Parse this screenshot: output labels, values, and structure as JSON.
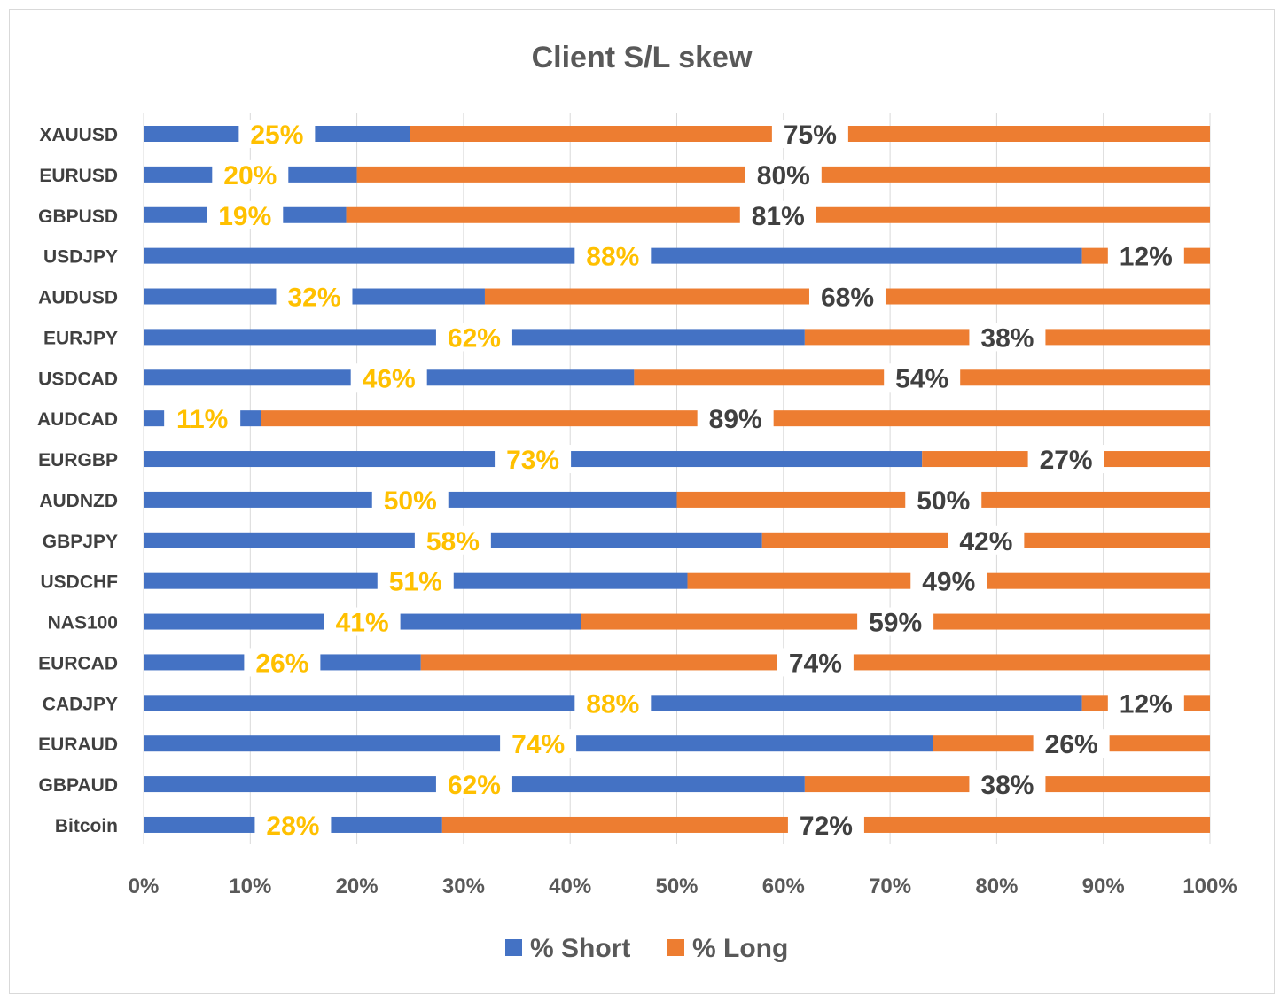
{
  "chart_data": {
    "type": "bar",
    "orientation": "horizontal",
    "stacked": "percent",
    "title": "Client S/L skew",
    "categories": [
      "XAUUSD",
      "EURUSD",
      "GBPUSD",
      "USDJPY",
      "AUDUSD",
      "EURJPY",
      "USDCAD",
      "AUDCAD",
      "EURGBP",
      "AUDNZD",
      "GBPJPY",
      "USDCHF",
      "NAS100",
      "EURCAD",
      "CADJPY",
      "EURAUD",
      "GBPAUD",
      "Bitcoin"
    ],
    "series": [
      {
        "name": "% Short",
        "color": "#4472C4",
        "label_color": "#FFC000",
        "values": [
          25,
          20,
          19,
          88,
          32,
          62,
          46,
          11,
          73,
          50,
          58,
          51,
          41,
          26,
          88,
          74,
          62,
          28
        ],
        "labels": [
          "25%",
          "20%",
          "19%",
          "88%",
          "32%",
          "62%",
          "46%",
          "11%",
          "73%",
          "50%",
          "58%",
          "51%",
          "41%",
          "26%",
          "88%",
          "74%",
          "62%",
          "28%"
        ]
      },
      {
        "name": "% Long",
        "color": "#ED7D31",
        "label_color": "#404040",
        "values": [
          75,
          80,
          81,
          12,
          68,
          38,
          54,
          89,
          27,
          50,
          42,
          49,
          59,
          74,
          12,
          26,
          38,
          72
        ],
        "labels": [
          "75%",
          "80%",
          "81%",
          "12%",
          "68%",
          "38%",
          "54%",
          "89%",
          "27%",
          "50%",
          "42%",
          "49%",
          "59%",
          "74%",
          "12%",
          "26%",
          "38%",
          "72%"
        ]
      }
    ],
    "xlim": [
      0,
      100
    ],
    "xticks": [
      "0%",
      "10%",
      "20%",
      "30%",
      "40%",
      "50%",
      "60%",
      "70%",
      "80%",
      "90%",
      "100%"
    ],
    "grid": true,
    "legend_position": "bottom"
  }
}
